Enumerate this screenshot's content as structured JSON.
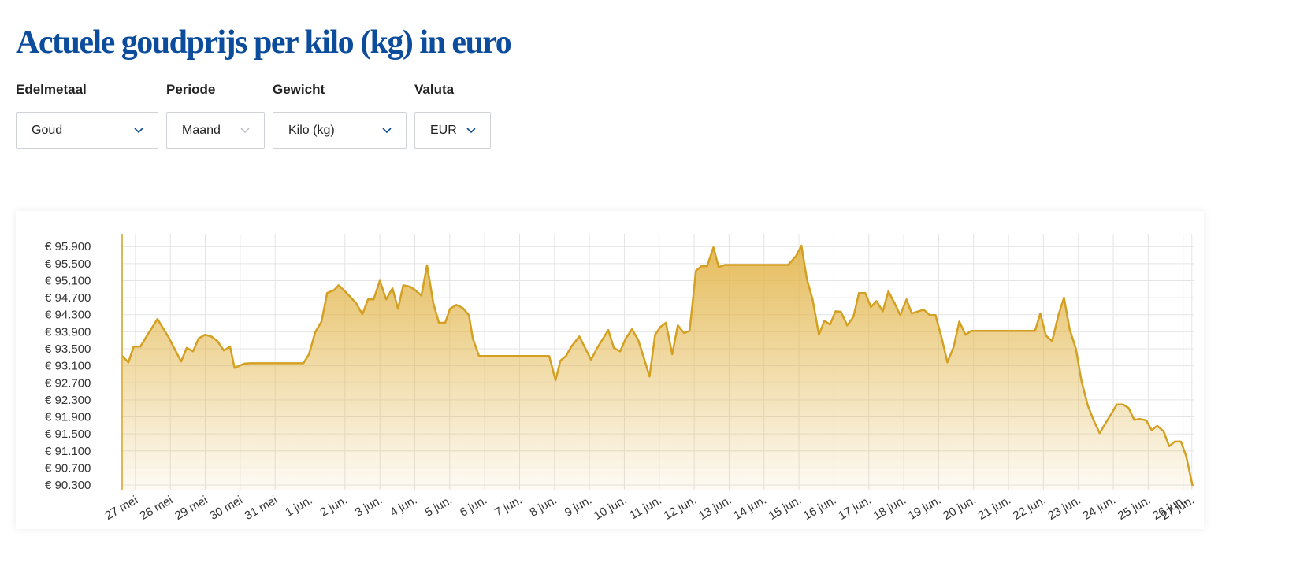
{
  "header": {
    "title": "Actuele goudprijs per kilo (kg) in euro"
  },
  "filters": [
    {
      "label": "Edelmetaal",
      "value": "Goud"
    },
    {
      "label": "Periode",
      "value": "Maand"
    },
    {
      "label": "Gewicht",
      "value": "Kilo (kg)"
    },
    {
      "label": "Valuta",
      "value": "EUR"
    }
  ],
  "chart_data": {
    "type": "area",
    "color": "#d4a021",
    "grid": true,
    "xlim": [
      -0.38,
      30.3
    ],
    "ylim": [
      90190,
      96200
    ],
    "xticks": [
      {
        "value": 0,
        "label": "27 mei"
      },
      {
        "value": 1,
        "label": "28 mei"
      },
      {
        "value": 2,
        "label": "29 mei"
      },
      {
        "value": 3,
        "label": "30 mei"
      },
      {
        "value": 4,
        "label": "31 mei"
      },
      {
        "value": 5,
        "label": "1 jun."
      },
      {
        "value": 6,
        "label": "2 jun."
      },
      {
        "value": 7,
        "label": "3 jun."
      },
      {
        "value": 8,
        "label": "4 jun."
      },
      {
        "value": 9,
        "label": "5 jun."
      },
      {
        "value": 10,
        "label": "6 jun."
      },
      {
        "value": 11,
        "label": "7 jun."
      },
      {
        "value": 12,
        "label": "8 jun."
      },
      {
        "value": 13,
        "label": "9 jun."
      },
      {
        "value": 14,
        "label": "10 jun."
      },
      {
        "value": 15,
        "label": "11 jun."
      },
      {
        "value": 16,
        "label": "12 jun."
      },
      {
        "value": 17,
        "label": "13 jun."
      },
      {
        "value": 18,
        "label": "14 jun."
      },
      {
        "value": 19,
        "label": "15 jun."
      },
      {
        "value": 20,
        "label": "16 jun."
      },
      {
        "value": 21,
        "label": "17 jun."
      },
      {
        "value": 22,
        "label": "18 jun."
      },
      {
        "value": 23,
        "label": "19 jun."
      },
      {
        "value": 24,
        "label": "20 jun."
      },
      {
        "value": 25,
        "label": "21 jun."
      },
      {
        "value": 26,
        "label": "22 jun."
      },
      {
        "value": 27,
        "label": "23 jun."
      },
      {
        "value": 28,
        "label": "24 jun."
      },
      {
        "value": 29,
        "label": "25 jun."
      },
      {
        "value": 30,
        "label": "26 jun."
      },
      {
        "value": 30.25,
        "label": "27 jun."
      }
    ],
    "yticks": [
      {
        "value": 90300,
        "label": "€ 90.300"
      },
      {
        "value": 90700,
        "label": "€ 90.700"
      },
      {
        "value": 91100,
        "label": "€ 91.100"
      },
      {
        "value": 91500,
        "label": "€ 91.500"
      },
      {
        "value": 91900,
        "label": "€ 91.900"
      },
      {
        "value": 92300,
        "label": "€ 92.300"
      },
      {
        "value": 92700,
        "label": "€ 92.700"
      },
      {
        "value": 93100,
        "label": "€ 93.100"
      },
      {
        "value": 93500,
        "label": "€ 93.500"
      },
      {
        "value": 93900,
        "label": "€ 93.900"
      },
      {
        "value": 94300,
        "label": "€ 94.300"
      },
      {
        "value": 94700,
        "label": "€ 94.700"
      },
      {
        "value": 95100,
        "label": "€ 95.100"
      },
      {
        "value": 95500,
        "label": "€ 95.500"
      },
      {
        "value": 95900,
        "label": "€ 95.900"
      }
    ],
    "x": [
      -0.38,
      -0.2,
      -0.05,
      0.14,
      0.32,
      0.63,
      0.95,
      1.31,
      1.47,
      1.65,
      1.81,
      1.99,
      2.17,
      2.35,
      2.53,
      2.71,
      2.84,
      3.12,
      3.3,
      4.81,
      4.97,
      5.15,
      5.33,
      5.49,
      5.69,
      5.82,
      6.05,
      6.32,
      6.5,
      6.66,
      6.82,
      7.0,
      7.18,
      7.36,
      7.52,
      7.67,
      7.86,
      8.01,
      8.19,
      8.35,
      8.53,
      8.69,
      8.87,
      9.01,
      9.19,
      9.37,
      9.55,
      9.66,
      9.84,
      11.85,
      12.03,
      12.17,
      12.33,
      12.48,
      12.71,
      12.89,
      13.05,
      13.21,
      13.39,
      13.54,
      13.7,
      13.88,
      14.04,
      14.22,
      14.4,
      14.56,
      14.72,
      14.88,
      15.03,
      15.19,
      15.37,
      15.53,
      15.71,
      15.87,
      16.05,
      16.21,
      16.37,
      16.55,
      16.7,
      16.88,
      18.69,
      18.92,
      19.07,
      19.23,
      19.39,
      19.57,
      19.73,
      19.89,
      20.05,
      20.2,
      20.38,
      20.56,
      20.72,
      20.9,
      21.06,
      21.22,
      21.4,
      21.56,
      21.74,
      21.9,
      22.08,
      22.23,
      22.42,
      22.57,
      22.75,
      22.91,
      23.09,
      23.25,
      23.43,
      23.59,
      23.77,
      23.93,
      25.76,
      25.91,
      26.07,
      26.25,
      26.43,
      26.59,
      26.75,
      26.93,
      27.09,
      27.27,
      27.43,
      27.61,
      27.77,
      27.95,
      28.1,
      28.28,
      28.44,
      28.6,
      28.76,
      28.94,
      29.1,
      29.26,
      29.44,
      29.6,
      29.76,
      29.94,
      30.09,
      30.27
    ],
    "values": [
      93330,
      93180,
      93550,
      93550,
      93790,
      94200,
      93770,
      93200,
      93520,
      93440,
      93740,
      93830,
      93790,
      93680,
      93460,
      93550,
      93050,
      93150,
      93160,
      93160,
      93370,
      93890,
      94140,
      94810,
      94880,
      94990,
      94810,
      94570,
      94310,
      94660,
      94660,
      95100,
      94660,
      94920,
      94440,
      94990,
      94960,
      94880,
      94750,
      95460,
      94570,
      94110,
      94110,
      94440,
      94530,
      94460,
      94290,
      93740,
      93330,
      93330,
      92760,
      93220,
      93330,
      93550,
      93790,
      93500,
      93240,
      93500,
      93740,
      93940,
      93520,
      93440,
      93740,
      93960,
      93700,
      93280,
      92850,
      93830,
      94010,
      94110,
      93370,
      94050,
      93870,
      93920,
      95330,
      95440,
      95440,
      95880,
      95420,
      95470,
      95470,
      95680,
      95920,
      95120,
      94660,
      93830,
      94160,
      94070,
      94380,
      94370,
      94050,
      94250,
      94810,
      94810,
      94480,
      94620,
      94380,
      94850,
      94570,
      94290,
      94660,
      94330,
      94380,
      94420,
      94290,
      94290,
      93740,
      93180,
      93550,
      94140,
      93830,
      93920,
      93920,
      94330,
      93810,
      93680,
      94290,
      94700,
      93960,
      93500,
      92740,
      92170,
      91830,
      91520,
      91740,
      91980,
      92190,
      92190,
      92110,
      91830,
      91850,
      91820,
      91590,
      91690,
      91560,
      91210,
      91320,
      91320,
      90970,
      90280
    ]
  }
}
